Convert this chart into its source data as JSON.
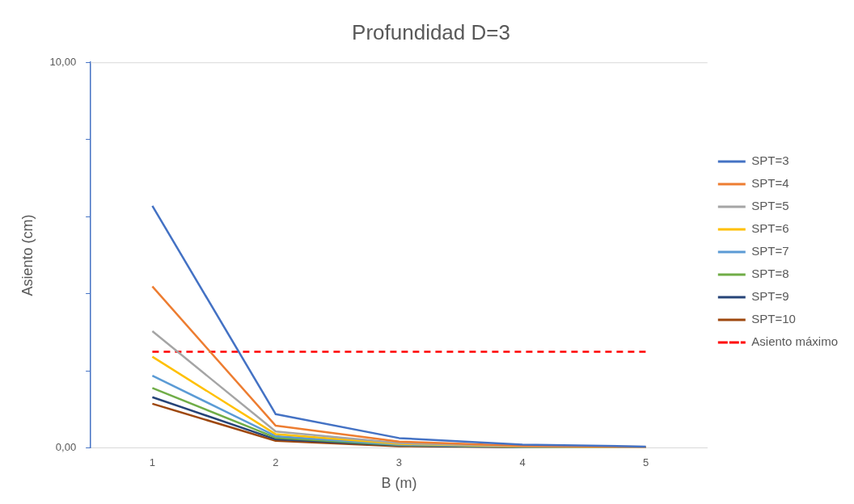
{
  "chart_data": {
    "type": "line",
    "title": "Profundidad D=3",
    "xlabel": "B (m)",
    "ylabel": "Asiento (cm)",
    "categories": [
      "1",
      "2",
      "3",
      "4",
      "5"
    ],
    "ylim": [
      0,
      10
    ],
    "yticks": [
      {
        "value": 0,
        "label": "0,00"
      },
      {
        "value": 2,
        "label": null
      },
      {
        "value": 4,
        "label": null
      },
      {
        "value": 6,
        "label": null
      },
      {
        "value": 8,
        "label": null
      },
      {
        "value": 10,
        "label": "10,00"
      }
    ],
    "legend": "right",
    "marker": "none",
    "series": [
      {
        "name": "SPT=3",
        "color": "#4472c4",
        "values": [
          6.28,
          0.88,
          0.26,
          0.09,
          0.04
        ]
      },
      {
        "name": "SPT=4",
        "color": "#ed7d31",
        "values": [
          4.19,
          0.58,
          0.17,
          0.06,
          0.03
        ]
      },
      {
        "name": "SPT=5",
        "color": "#a5a5a5",
        "values": [
          3.03,
          0.43,
          0.13,
          0.05,
          0.02
        ]
      },
      {
        "name": "SPT=6",
        "color": "#ffc000",
        "values": [
          2.37,
          0.36,
          0.11,
          0.04,
          0.02
        ]
      },
      {
        "name": "SPT=7",
        "color": "#5b9bd5",
        "values": [
          1.88,
          0.31,
          0.09,
          0.03,
          0.01
        ]
      },
      {
        "name": "SPT=8",
        "color": "#70ad47",
        "values": [
          1.56,
          0.27,
          0.08,
          0.03,
          0.01
        ]
      },
      {
        "name": "SPT=9",
        "color": "#264478",
        "values": [
          1.32,
          0.23,
          0.07,
          0.02,
          0.01
        ]
      },
      {
        "name": "SPT=10",
        "color": "#9e480e",
        "values": [
          1.15,
          0.19,
          0.05,
          0.02,
          0.01
        ]
      },
      {
        "name": "Asiento máximo",
        "color": "#ff0000",
        "line_style": "dashed",
        "values": [
          2.5,
          2.5,
          2.5,
          2.5,
          2.5
        ]
      }
    ]
  }
}
